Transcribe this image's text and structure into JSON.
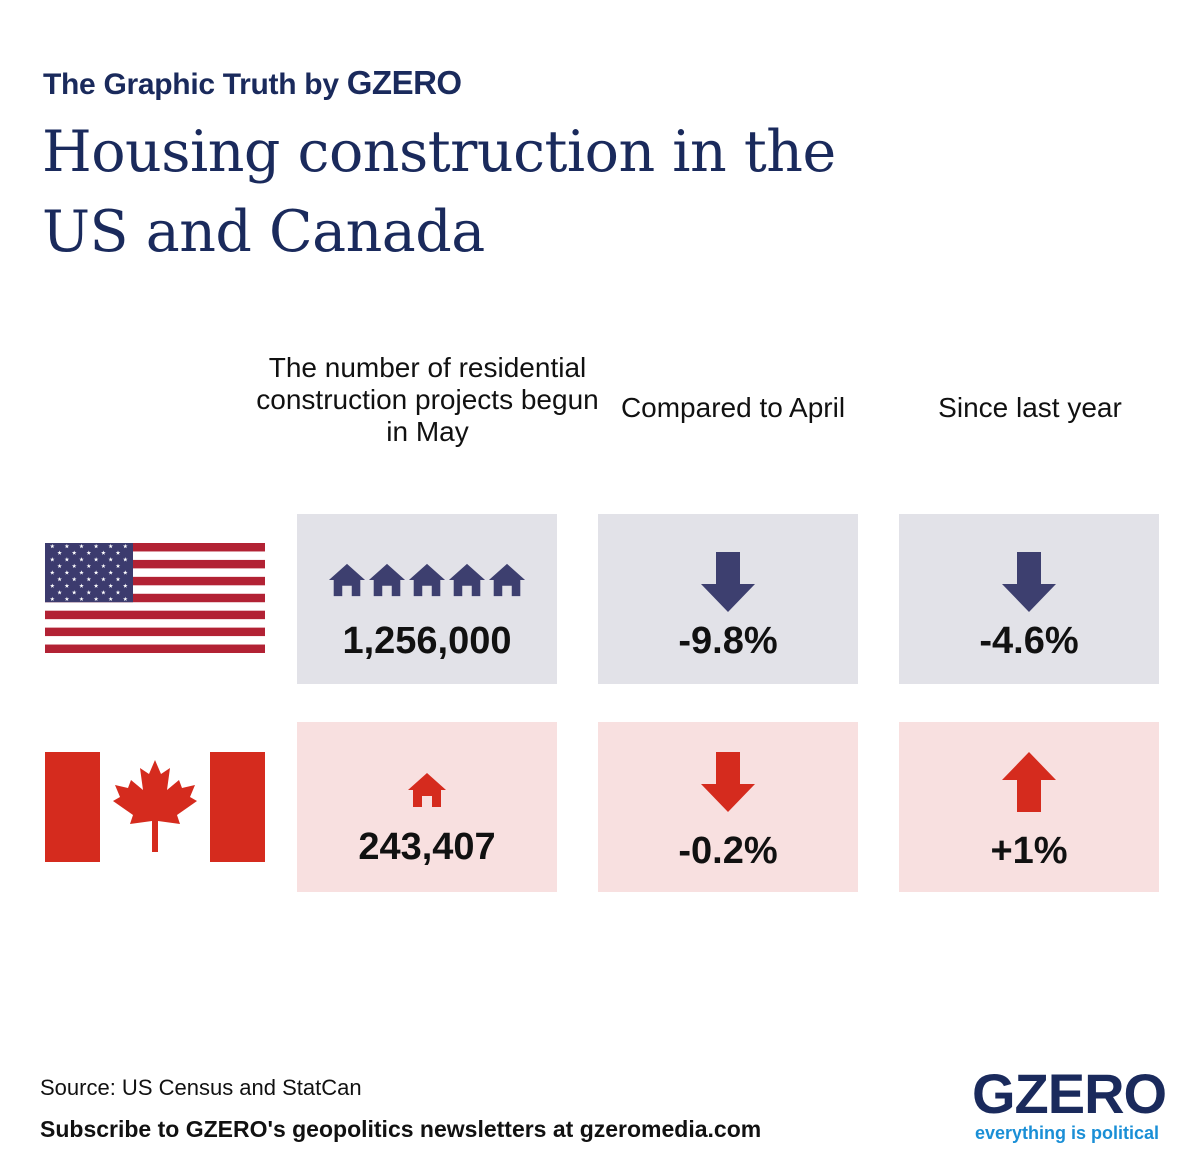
{
  "header": {
    "kicker_prefix": "The Graphic Truth by",
    "kicker_brand": "GZERO",
    "title": "Housing construction in the US and Canada"
  },
  "chart_data": {
    "type": "table",
    "columns": [
      "The number of residential construction projects begun in May",
      "Compared to April",
      "Since last year"
    ],
    "rows": [
      {
        "flag": "us-flag-icon",
        "starts": "1,256,000",
        "starts_value": 1256000,
        "house_icons": 5,
        "vs_april": "-9.8%",
        "vs_april_value": -9.8,
        "vs_april_direction": "down",
        "vs_last_year": "-4.6%",
        "vs_last_year_value": -4.6,
        "vs_last_year_direction": "down",
        "color": "#3d3f6f",
        "cell_bg": "#e2e2e8"
      },
      {
        "flag": "canada-flag-icon",
        "starts": "243,407",
        "starts_value": 243407,
        "house_icons": 1,
        "vs_april": "-0.2%",
        "vs_april_value": -0.2,
        "vs_april_direction": "down",
        "vs_last_year": "+1%",
        "vs_last_year_value": 1,
        "vs_last_year_direction": "up",
        "color": "#d52b1e",
        "cell_bg": "#f8e0e0"
      }
    ]
  },
  "footer": {
    "source": "Source: US Census and StatCan",
    "subscribe": "Subscribe to GZERO's geopolitics newsletters at gzeromedia.com",
    "logo_word": "GZERO",
    "logo_tagline": "everything is political"
  },
  "colors": {
    "navy": "#1a2a5c",
    "us_accent": "#3d3f6f",
    "ca_accent": "#d52b1e",
    "logo_tagline": "#1a8fd6"
  }
}
